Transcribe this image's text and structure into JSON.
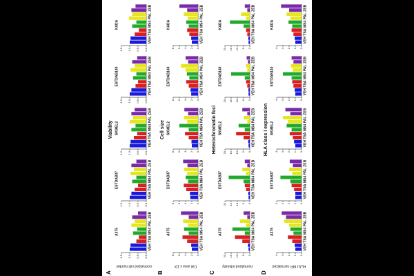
{
  "chart_data": [
    {
      "type": "bar",
      "panel": "A",
      "heading": null,
      "ylabel": "normalized cell number",
      "title": "A375",
      "categories": [
        "VEH",
        null,
        "TSA",
        null,
        "MS4",
        null,
        "PAL",
        null,
        "ZEB",
        null
      ],
      "values": [
        1.0,
        0.95,
        0.6,
        0.45,
        0.8,
        0.55,
        0.9,
        0.7,
        0.85,
        0.5
      ],
      "colors": [
        "#1a1adb",
        "#1a1adb",
        "#d92020",
        "#d92020",
        "#1faa2a",
        "#1faa2a",
        "#e6e620",
        "#e6e620",
        "#7a2aa8",
        "#7a2aa8"
      ],
      "ylim": [
        0,
        1.5
      ],
      "yticks": [
        {
          "value": 0,
          "label": "0.0"
        },
        {
          "value": 0.5,
          "label": "0.5"
        },
        {
          "value": 1,
          "label": "1.0"
        },
        {
          "value": 1.5,
          "label": "1.5"
        }
      ]
    },
    {
      "type": "bar",
      "title": "ESTDAB37",
      "categories": [
        "VEH",
        null,
        "TSA",
        null,
        "MS4",
        null,
        "PAL",
        null,
        "ZEB",
        null
      ],
      "values": [
        1.0,
        0.9,
        0.7,
        0.5,
        0.85,
        0.6,
        0.95,
        0.75,
        0.9,
        0.6
      ],
      "colors": [
        "#1a1adb",
        "#1a1adb",
        "#d92020",
        "#d92020",
        "#1faa2a",
        "#1faa2a",
        "#e6e620",
        "#e6e620",
        "#7a2aa8",
        "#7a2aa8"
      ],
      "ylim": [
        0,
        1.5
      ],
      "yticks": [
        {
          "value": 0,
          "label": "0.0"
        },
        {
          "value": 0.5,
          "label": "0.5"
        },
        {
          "value": 1,
          "label": "1.0"
        },
        {
          "value": 1.5,
          "label": "1.5"
        }
      ]
    },
    {
      "type": "bar",
      "heading": "Viability",
      "title": "SKMEL2",
      "categories": [
        "VEH",
        null,
        "TSA",
        null,
        "MS4",
        null,
        "PAL",
        null,
        "ZEB",
        null
      ],
      "values": [
        1.0,
        0.95,
        0.75,
        0.55,
        0.9,
        0.65,
        1.0,
        0.8,
        0.9,
        0.7
      ],
      "colors": [
        "#1a1adb",
        "#1a1adb",
        "#d92020",
        "#d92020",
        "#1faa2a",
        "#1faa2a",
        "#e6e620",
        "#e6e620",
        "#7a2aa8",
        "#7a2aa8"
      ],
      "ylim": [
        0,
        1.5
      ],
      "yticks": [
        {
          "value": 0,
          "label": "0.0"
        },
        {
          "value": 0.5,
          "label": "0.5"
        },
        {
          "value": 1,
          "label": "1.0"
        },
        {
          "value": 1.5,
          "label": "1.5"
        }
      ]
    },
    {
      "type": "bar",
      "title": "ESTDAB140",
      "categories": [
        "VEH",
        null,
        "TSA",
        null,
        "MS4",
        null,
        "PAL",
        null,
        "ZEB",
        null
      ],
      "values": [
        1.0,
        0.9,
        0.65,
        0.5,
        0.8,
        0.6,
        0.95,
        0.7,
        0.85,
        0.55
      ],
      "colors": [
        "#1a1adb",
        "#1a1adb",
        "#d92020",
        "#d92020",
        "#1faa2a",
        "#1faa2a",
        "#e6e620",
        "#e6e620",
        "#7a2aa8",
        "#7a2aa8"
      ],
      "ylim": [
        0,
        1.5
      ],
      "yticks": [
        {
          "value": 0,
          "label": "0.0"
        },
        {
          "value": 0.5,
          "label": "0.5"
        },
        {
          "value": 1,
          "label": "1.0"
        },
        {
          "value": 1.5,
          "label": "1.5"
        }
      ]
    },
    {
      "type": "bar",
      "title": "KADA",
      "categories": [
        "VEH",
        null,
        "TSA",
        null,
        "MS4",
        null,
        "PAL",
        null,
        "ZEB",
        null
      ],
      "values": [
        1.0,
        0.95,
        0.7,
        0.45,
        0.85,
        0.6,
        1.05,
        0.85,
        0.9,
        0.65
      ],
      "colors": [
        "#1a1adb",
        "#1a1adb",
        "#d92020",
        "#d92020",
        "#1faa2a",
        "#1faa2a",
        "#e6e620",
        "#e6e620",
        "#7a2aa8",
        "#7a2aa8"
      ],
      "ylim": [
        0,
        1.5
      ],
      "yticks": [
        {
          "value": 0,
          "label": "0.0"
        },
        {
          "value": 0.5,
          "label": "0.5"
        },
        {
          "value": 1,
          "label": "1.0"
        },
        {
          "value": 1.5,
          "label": "1.5"
        }
      ]
    },
    {
      "type": "bar",
      "panel": "B",
      "ylabel": "Cell area x 10³",
      "title": "A375",
      "categories": [
        "VEH",
        null,
        "TSA",
        null,
        "MS4",
        null,
        "PAL",
        null,
        "ZEB",
        null
      ],
      "values": [
        2,
        2.2,
        3.5,
        5,
        3,
        4.5,
        3.2,
        4.8,
        3,
        5.5
      ],
      "colors": [
        "#1a1adb",
        "#1a1adb",
        "#d92020",
        "#d92020",
        "#1faa2a",
        "#1faa2a",
        "#e6e620",
        "#e6e620",
        "#7a2aa8",
        "#7a2aa8"
      ],
      "ylim": [
        0,
        8
      ],
      "yticks": [
        0,
        2,
        4,
        6,
        8
      ]
    },
    {
      "type": "bar",
      "title": "ESTDAB37",
      "categories": [
        "VEH",
        null,
        "TSA",
        null,
        "MS4",
        null,
        "PAL",
        null,
        "ZEB",
        null
      ],
      "values": [
        2.5,
        2.6,
        3.8,
        4.6,
        3.2,
        4,
        3.5,
        4.5,
        3.4,
        4.8
      ],
      "colors": [
        "#1a1adb",
        "#1a1adb",
        "#d92020",
        "#d92020",
        "#1faa2a",
        "#1faa2a",
        "#e6e620",
        "#e6e620",
        "#7a2aa8",
        "#7a2aa8"
      ],
      "ylim": [
        0,
        8
      ],
      "yticks": [
        0,
        2,
        4,
        6,
        8
      ]
    },
    {
      "type": "bar",
      "heading": "Cell size",
      "title": "SKMEL2",
      "categories": [
        "VEH",
        null,
        "TSA",
        null,
        "MS4",
        null,
        "PAL",
        null,
        "ZEB",
        null
      ],
      "values": [
        2,
        2.1,
        3,
        4.2,
        3,
        6,
        3.5,
        4.5,
        3.2,
        4.4
      ],
      "colors": [
        "#1a1adb",
        "#1a1adb",
        "#d92020",
        "#d92020",
        "#1faa2a",
        "#1faa2a",
        "#e6e620",
        "#e6e620",
        "#7a2aa8",
        "#7a2aa8"
      ],
      "ylim": [
        0,
        8
      ],
      "yticks": [
        0,
        2,
        4,
        6,
        8
      ]
    },
    {
      "type": "bar",
      "title": "ESTDAB140",
      "categories": [
        "VEH",
        null,
        "TSA",
        null,
        "MS4",
        null,
        "PAL",
        null,
        "ZEB",
        null
      ],
      "values": [
        2.2,
        2.4,
        3,
        3.8,
        2.8,
        3.6,
        4,
        5.5,
        3.2,
        4
      ],
      "colors": [
        "#1a1adb",
        "#1a1adb",
        "#d92020",
        "#d92020",
        "#1faa2a",
        "#1faa2a",
        "#e6e620",
        "#e6e620",
        "#7a2aa8",
        "#7a2aa8"
      ],
      "ylim": [
        0,
        8
      ],
      "yticks": [
        0,
        2,
        4,
        6,
        8
      ]
    },
    {
      "type": "bar",
      "title": "KADA",
      "categories": [
        "VEH",
        null,
        "TSA",
        null,
        "MS4",
        null,
        "PAL",
        null,
        "ZEB",
        null
      ],
      "values": [
        2,
        2.2,
        2.8,
        3.5,
        3,
        3.8,
        3.3,
        4.6,
        3.5,
        6
      ],
      "colors": [
        "#1a1adb",
        "#1a1adb",
        "#d92020",
        "#d92020",
        "#1faa2a",
        "#1faa2a",
        "#e6e620",
        "#e6e620",
        "#7a2aa8",
        "#7a2aa8"
      ],
      "ylim": [
        0,
        8
      ],
      "yticks": [
        0,
        2,
        4,
        6,
        8
      ]
    },
    {
      "type": "bar",
      "panel": "C",
      "ylabel": "normalized intensity",
      "title": "A375",
      "categories": [
        "VEH",
        null,
        "TSA",
        null,
        "MS4",
        null,
        "PAL",
        null,
        "ZEB",
        null
      ],
      "values": [
        1,
        1.5,
        6,
        12,
        4,
        14,
        3,
        8,
        2,
        5
      ],
      "colors": [
        "#1a1adb",
        "#1a1adb",
        "#d92020",
        "#d92020",
        "#1faa2a",
        "#1faa2a",
        "#e6e620",
        "#e6e620",
        "#7a2aa8",
        "#7a2aa8"
      ],
      "ylim": [
        0,
        20
      ],
      "yticks": [
        0,
        5,
        10,
        15,
        20
      ]
    },
    {
      "type": "bar",
      "title": "ESTDAB37",
      "categories": [
        "VEH",
        null,
        "TSA",
        null,
        "MS4",
        null,
        "PAL",
        null,
        "ZEB",
        null
      ],
      "values": [
        1,
        1.2,
        3,
        4,
        5,
        17,
        3,
        6,
        2,
        4
      ],
      "colors": [
        "#1a1adb",
        "#1a1adb",
        "#d92020",
        "#d92020",
        "#1faa2a",
        "#1faa2a",
        "#e6e620",
        "#e6e620",
        "#7a2aa8",
        "#7a2aa8"
      ],
      "ylim": [
        0,
        20
      ],
      "yticks": [
        0,
        5,
        10,
        15,
        20
      ]
    },
    {
      "type": "bar",
      "heading": "Heterochromatin foci",
      "title": "SKMEL2",
      "categories": [
        "VEH",
        null,
        "TSA",
        null,
        "MS4",
        null,
        "PAL",
        null,
        "ZEB",
        null
      ],
      "values": [
        1,
        1.3,
        5,
        11,
        4,
        9,
        2,
        5,
        2,
        6
      ],
      "colors": [
        "#1a1adb",
        "#1a1adb",
        "#d92020",
        "#d92020",
        "#1faa2a",
        "#1faa2a",
        "#e6e620",
        "#e6e620",
        "#7a2aa8",
        "#7a2aa8"
      ],
      "ylim": [
        0,
        20
      ],
      "yticks": [
        0,
        5,
        10,
        15,
        20
      ]
    },
    {
      "type": "bar",
      "title": "ESTDAB140",
      "categories": [
        "VEH",
        null,
        "TSA",
        null,
        "MS4",
        null,
        "PAL",
        null,
        "ZEB",
        null
      ],
      "values": [
        1,
        1.1,
        2,
        3,
        4,
        15,
        2,
        3,
        1.5,
        2.5
      ],
      "colors": [
        "#1a1adb",
        "#1a1adb",
        "#d92020",
        "#d92020",
        "#1faa2a",
        "#1faa2a",
        "#e6e620",
        "#e6e620",
        "#7a2aa8",
        "#7a2aa8"
      ],
      "ylim": [
        0,
        20
      ],
      "yticks": [
        0,
        5,
        10,
        15,
        20
      ]
    },
    {
      "type": "bar",
      "title": "KADA",
      "categories": [
        "VEH",
        null,
        "TSA",
        null,
        "MS4",
        null,
        "PAL",
        null,
        "ZEB",
        null
      ],
      "values": [
        1,
        1.2,
        2,
        3,
        5,
        16,
        3,
        7,
        2,
        4
      ],
      "colors": [
        "#1a1adb",
        "#1a1adb",
        "#d92020",
        "#d92020",
        "#1faa2a",
        "#1faa2a",
        "#e6e620",
        "#e6e620",
        "#7a2aa8",
        "#7a2aa8"
      ],
      "ylim": [
        0,
        20
      ],
      "yticks": [
        0,
        5,
        10,
        15,
        20
      ]
    },
    {
      "type": "bar",
      "panel": "D",
      "ylabel": "HLA-I MFI normalized",
      "title": "A375",
      "categories": [
        "VEH",
        null,
        "TSA",
        null,
        "MS4",
        null,
        "PAL",
        null,
        "ZEB",
        null
      ],
      "values": [
        1,
        1.1,
        1.5,
        2.2,
        1.3,
        1.8,
        2,
        2.8,
        2.5,
        3.2
      ],
      "colors": [
        "#1a1adb",
        "#1a1adb",
        "#d92020",
        "#d92020",
        "#1faa2a",
        "#1faa2a",
        "#e6e620",
        "#e6e620",
        "#7a2aa8",
        "#7a2aa8"
      ],
      "ylim": [
        0,
        4
      ],
      "yticks": [
        0,
        1,
        2,
        3,
        4
      ]
    },
    {
      "type": "bar",
      "title": "ESTDAB37",
      "categories": [
        "VEH",
        null,
        "TSA",
        null,
        "MS4",
        null,
        "PAL",
        null,
        "ZEB",
        null
      ],
      "values": [
        1,
        1,
        1.2,
        1.6,
        1.8,
        3.4,
        1.5,
        2,
        1.4,
        1.9
      ],
      "colors": [
        "#1a1adb",
        "#1a1adb",
        "#d92020",
        "#d92020",
        "#1faa2a",
        "#1faa2a",
        "#e6e620",
        "#e6e620",
        "#7a2aa8",
        "#7a2aa8"
      ],
      "ylim": [
        0,
        4
      ],
      "yticks": [
        0,
        1,
        2,
        3,
        4
      ]
    },
    {
      "type": "bar",
      "heading": "HLA class I expression",
      "title": "SKMEL2",
      "categories": [
        "VEH",
        null,
        "TSA",
        null,
        "MS4",
        null,
        "PAL",
        null,
        "ZEB",
        null
      ],
      "values": [
        1,
        1.2,
        1.4,
        1.9,
        1.6,
        2.4,
        2.2,
        3,
        1.8,
        2.6
      ],
      "colors": [
        "#1a1adb",
        "#1a1adb",
        "#d92020",
        "#d92020",
        "#1faa2a",
        "#1faa2a",
        "#e6e620",
        "#e6e620",
        "#7a2aa8",
        "#7a2aa8"
      ],
      "ylim": [
        0,
        4
      ],
      "yticks": [
        0,
        1,
        2,
        3,
        4
      ]
    },
    {
      "type": "bar",
      "title": "ESTDAB140",
      "categories": [
        "VEH",
        null,
        "TSA",
        null,
        "MS4",
        null,
        "PAL",
        null,
        "ZEB",
        null
      ],
      "values": [
        1,
        1.1,
        1.3,
        1.5,
        1.6,
        3,
        1.4,
        1.7,
        1.3,
        1.6
      ],
      "colors": [
        "#1a1adb",
        "#1a1adb",
        "#d92020",
        "#d92020",
        "#1faa2a",
        "#1faa2a",
        "#e6e620",
        "#e6e620",
        "#7a2aa8",
        "#7a2aa8"
      ],
      "ylim": [
        0,
        4
      ],
      "yticks": [
        0,
        1,
        2,
        3,
        4
      ]
    },
    {
      "type": "bar",
      "title": "KADA",
      "categories": [
        "VEH",
        null,
        "TSA",
        null,
        "MS4",
        null,
        "PAL",
        null,
        "ZEB",
        null
      ],
      "values": [
        1,
        1.1,
        1.3,
        1.6,
        1.5,
        2.1,
        1.8,
        2.4,
        2,
        3.3
      ],
      "colors": [
        "#1a1adb",
        "#1a1adb",
        "#d92020",
        "#d92020",
        "#1faa2a",
        "#1faa2a",
        "#e6e620",
        "#e6e620",
        "#7a2aa8",
        "#7a2aa8"
      ],
      "ylim": [
        0,
        4
      ],
      "yticks": [
        0,
        1,
        2,
        3,
        4
      ]
    }
  ]
}
